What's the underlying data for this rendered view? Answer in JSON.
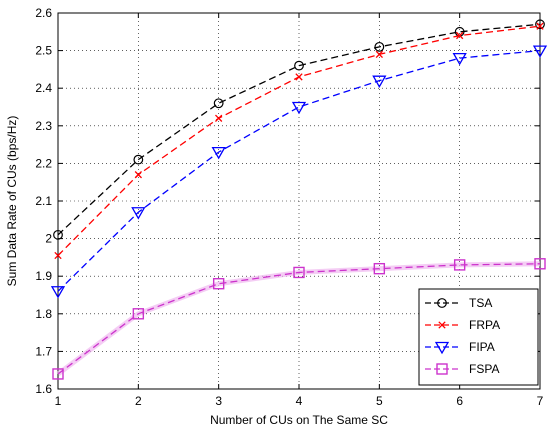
{
  "chart_data": {
    "type": "line",
    "title": "",
    "xlabel": "Number of CUs on The Same SC",
    "ylabel": "Sum Data Rate of CUs (bps/Hz)",
    "x": [
      1,
      2,
      3,
      4,
      5,
      6,
      7
    ],
    "xlim": [
      1,
      7
    ],
    "ylim": [
      1.6,
      2.6
    ],
    "xticks": [
      "1",
      "2",
      "3",
      "4",
      "5",
      "6",
      "7"
    ],
    "yticks": [
      "1.6",
      "1.7",
      "1.8",
      "1.9",
      "2",
      "2.1",
      "2.2",
      "2.3",
      "2.4",
      "2.5",
      "2.6"
    ],
    "grid": true,
    "legend_position": "bottom-right",
    "series": [
      {
        "name": "TSA",
        "values": [
          2.01,
          2.21,
          2.36,
          2.46,
          2.51,
          2.55,
          2.57
        ],
        "color": "#000000",
        "marker": "circle",
        "line": "dashed"
      },
      {
        "name": "FRPA",
        "values": [
          1.955,
          2.17,
          2.32,
          2.43,
          2.49,
          2.54,
          2.565
        ],
        "color": "#ff0000",
        "marker": "x",
        "line": "dashed"
      },
      {
        "name": "FIPA",
        "values": [
          1.86,
          2.07,
          2.23,
          2.35,
          2.42,
          2.48,
          2.5
        ],
        "color": "#0000ff",
        "marker": "triangle-down",
        "line": "dashed"
      },
      {
        "name": "FSPA",
        "values": [
          1.64,
          1.8,
          1.88,
          1.91,
          1.92,
          1.93,
          1.933
        ],
        "color": "#cc33cc",
        "marker": "square",
        "line": "dashed"
      }
    ]
  }
}
